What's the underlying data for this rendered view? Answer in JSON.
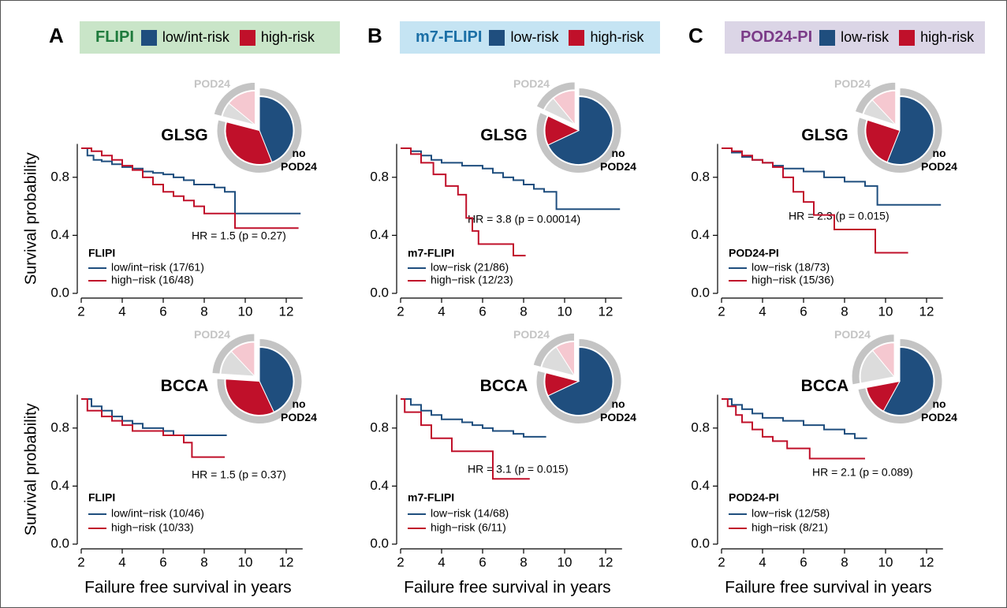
{
  "panels": [
    {
      "letter": "A",
      "score": "FLIPI",
      "legend": [
        {
          "name": "low/int-risk",
          "color": "#1f4e7e"
        },
        {
          "name": "high-risk",
          "color": "#c0102a"
        }
      ]
    },
    {
      "letter": "B",
      "score": "m7-FLIPI",
      "legend": [
        {
          "name": "low-risk",
          "color": "#1f4e7e"
        },
        {
          "name": "high-risk",
          "color": "#c0102a"
        }
      ]
    },
    {
      "letter": "C",
      "score": "POD24-PI",
      "legend": [
        {
          "name": "low-risk",
          "color": "#1f4e7e"
        },
        {
          "name": "high-risk",
          "color": "#c0102a"
        }
      ]
    }
  ],
  "chart_data": [
    {
      "type": "line",
      "step": true,
      "title": "GLSG",
      "y_label": "Survival probability",
      "xlim": [
        2,
        12.8
      ],
      "xticks": [
        2,
        4,
        6,
        8,
        10,
        12
      ],
      "ylim": [
        0,
        1.03
      ],
      "yticks": [
        {
          "value": 0,
          "label": "0.0"
        },
        0.4,
        0.8
      ],
      "annotation": "HR = 1.5 (p = 0.27)",
      "legend_title": "FLIPI",
      "series": [
        {
          "name": "low/int−risk (17/61)",
          "color": "#1f4e7e",
          "x": [
            2,
            2.3,
            2.6,
            3,
            3.5,
            4,
            4.5,
            5,
            5.5,
            6,
            6.5,
            7,
            7.5,
            8.5,
            9,
            9.5,
            12.7
          ],
          "values": [
            1,
            0.95,
            0.92,
            0.91,
            0.89,
            0.87,
            0.86,
            0.84,
            0.83,
            0.82,
            0.8,
            0.78,
            0.75,
            0.73,
            0.7,
            0.55,
            0.55
          ]
        },
        {
          "name": "high−risk (16/48)",
          "color": "#c0102a",
          "x": [
            2,
            2.5,
            3,
            3.5,
            4,
            4.5,
            5,
            5.5,
            6,
            6.5,
            7,
            7.5,
            8,
            9.5,
            12.6
          ],
          "values": [
            1,
            0.98,
            0.95,
            0.92,
            0.88,
            0.85,
            0.8,
            0.75,
            0.7,
            0.67,
            0.64,
            0.6,
            0.55,
            0.45,
            0.45
          ]
        }
      ],
      "inset": {
        "type": "pie",
        "labels": [
          "no POD24",
          "POD24"
        ],
        "values": [
          44,
          35,
          7,
          14
        ],
        "colors": [
          "#1f4e7e",
          "#c0102a",
          "#dcdcdc",
          "#f5c8d0"
        ]
      }
    },
    {
      "type": "line",
      "step": true,
      "title": "BCCA",
      "y_label": "Survival probability",
      "x_label": "Failure free survival in years",
      "xlim": [
        2,
        12.8
      ],
      "xticks": [
        2,
        4,
        6,
        8,
        10,
        12
      ],
      "ylim": [
        0,
        1.03
      ],
      "yticks": [
        {
          "value": 0,
          "label": "0.0"
        },
        0.4,
        0.8
      ],
      "annotation": "HR = 1.5 (p = 0.37)",
      "legend_title": "FLIPI",
      "series": [
        {
          "name": "low/int−risk (10/46)",
          "color": "#1f4e7e",
          "x": [
            2,
            2.5,
            3,
            3.5,
            4,
            4.5,
            5,
            6,
            6.5,
            9.1
          ],
          "values": [
            1,
            0.95,
            0.92,
            0.88,
            0.85,
            0.83,
            0.8,
            0.78,
            0.75,
            0.75
          ]
        },
        {
          "name": "high−risk (10/33)",
          "color": "#c0102a",
          "x": [
            2,
            2.3,
            3,
            3.5,
            4,
            4.5,
            6,
            7,
            7.4,
            9
          ],
          "values": [
            1,
            0.92,
            0.88,
            0.85,
            0.82,
            0.78,
            0.75,
            0.7,
            0.6,
            0.6
          ]
        }
      ],
      "inset": {
        "type": "pie",
        "labels": [
          "no POD24",
          "POD24"
        ],
        "values": [
          43,
          33,
          12,
          12
        ],
        "colors": [
          "#1f4e7e",
          "#c0102a",
          "#dcdcdc",
          "#f5c8d0"
        ]
      }
    },
    {
      "type": "line",
      "step": true,
      "title": "GLSG",
      "xlim": [
        2,
        12.8
      ],
      "xticks": [
        2,
        4,
        6,
        8,
        10,
        12
      ],
      "ylim": [
        0,
        1.03
      ],
      "yticks": [
        {
          "value": 0,
          "label": "0.0"
        },
        0.4,
        0.8
      ],
      "annotation": "HR = 3.8 (p = 0.00014)",
      "legend_title": "m7-FLIPI",
      "series": [
        {
          "name": "low−risk (21/86)",
          "color": "#1f4e7e",
          "x": [
            2,
            2.5,
            3,
            3.5,
            4,
            5,
            6,
            6.5,
            7,
            7.5,
            8,
            8.5,
            9,
            9.6,
            12.7
          ],
          "values": [
            1,
            0.98,
            0.95,
            0.92,
            0.9,
            0.88,
            0.86,
            0.83,
            0.8,
            0.78,
            0.75,
            0.72,
            0.7,
            0.58,
            0.58
          ]
        },
        {
          "name": "high−risk (12/23)",
          "color": "#c0102a",
          "x": [
            2,
            2.5,
            3,
            3.6,
            4.2,
            4.8,
            5.2,
            5.5,
            5.8,
            6.5,
            7.5,
            8.1
          ],
          "values": [
            1,
            0.96,
            0.9,
            0.82,
            0.74,
            0.68,
            0.52,
            0.43,
            0.34,
            0.34,
            0.26,
            0.26
          ]
        }
      ],
      "inset": {
        "type": "pie",
        "labels": [
          "no POD24",
          "POD24"
        ],
        "values": [
          68,
          14,
          7,
          11
        ],
        "colors": [
          "#1f4e7e",
          "#c0102a",
          "#dcdcdc",
          "#f5c8d0"
        ]
      }
    },
    {
      "type": "line",
      "step": true,
      "title": "BCCA",
      "x_label": "Failure free survival in years",
      "xlim": [
        2,
        12.8
      ],
      "xticks": [
        2,
        4,
        6,
        8,
        10,
        12
      ],
      "ylim": [
        0,
        1.03
      ],
      "yticks": [
        {
          "value": 0,
          "label": "0.0"
        },
        0.4,
        0.8
      ],
      "annotation": "HR = 3.1 (p = 0.015)",
      "legend_title": "m7-FLIPI",
      "series": [
        {
          "name": "low−risk (14/68)",
          "color": "#1f4e7e",
          "x": [
            2,
            2.5,
            3,
            3.5,
            4,
            5,
            5.5,
            6,
            6.5,
            7.5,
            8,
            9.1
          ],
          "values": [
            1,
            0.96,
            0.92,
            0.89,
            0.86,
            0.84,
            0.82,
            0.8,
            0.78,
            0.76,
            0.74,
            0.74
          ]
        },
        {
          "name": "high−risk (6/11)",
          "color": "#c0102a",
          "x": [
            2,
            2.2,
            3,
            3.5,
            4.5,
            6.5,
            8.3
          ],
          "values": [
            1,
            0.91,
            0.82,
            0.73,
            0.64,
            0.45,
            0.45
          ]
        }
      ],
      "inset": {
        "type": "pie",
        "labels": [
          "no POD24",
          "POD24"
        ],
        "values": [
          68,
          11,
          12,
          9
        ],
        "colors": [
          "#1f4e7e",
          "#c0102a",
          "#dcdcdc",
          "#f5c8d0"
        ]
      }
    },
    {
      "type": "line",
      "step": true,
      "title": "GLSG",
      "xlim": [
        2,
        12.8
      ],
      "xticks": [
        2,
        4,
        6,
        8,
        10,
        12
      ],
      "ylim": [
        0,
        1.03
      ],
      "yticks": [
        {
          "value": 0,
          "label": "0.0"
        },
        0.4,
        0.8
      ],
      "annotation": "HR = 2.3 (p = 0.015)",
      "legend_title": "POD24-PI",
      "series": [
        {
          "name": "low−risk (18/73)",
          "color": "#1f4e7e",
          "x": [
            2,
            2.5,
            3,
            3.5,
            4,
            4.5,
            5,
            6,
            7,
            8,
            9,
            9.6,
            12.7
          ],
          "values": [
            1,
            0.97,
            0.94,
            0.92,
            0.9,
            0.88,
            0.86,
            0.84,
            0.8,
            0.77,
            0.74,
            0.61,
            0.61
          ]
        },
        {
          "name": "high−risk (15/36)",
          "color": "#c0102a",
          "x": [
            2,
            2.5,
            3,
            3.5,
            4,
            4.5,
            5,
            5.5,
            6,
            6.5,
            7.5,
            9.5,
            11.1
          ],
          "values": [
            1,
            0.98,
            0.95,
            0.92,
            0.9,
            0.87,
            0.8,
            0.7,
            0.63,
            0.54,
            0.44,
            0.28,
            0.28
          ]
        }
      ],
      "inset": {
        "type": "pie",
        "labels": [
          "no POD24",
          "POD24"
        ],
        "values": [
          56,
          24,
          8,
          12
        ],
        "colors": [
          "#1f4e7e",
          "#c0102a",
          "#dcdcdc",
          "#f5c8d0"
        ]
      }
    },
    {
      "type": "line",
      "step": true,
      "title": "BCCA",
      "x_label": "Failure free survival in years",
      "xlim": [
        2,
        12.8
      ],
      "xticks": [
        2,
        4,
        6,
        8,
        10,
        12
      ],
      "ylim": [
        0,
        1.03
      ],
      "yticks": [
        {
          "value": 0,
          "label": "0.0"
        },
        0.4,
        0.8
      ],
      "annotation": "HR = 2.1 (p = 0.089)",
      "legend_title": "POD24-PI",
      "series": [
        {
          "name": "low−risk (12/58)",
          "color": "#1f4e7e",
          "x": [
            2,
            2.5,
            3,
            3.5,
            4,
            5,
            6,
            7,
            8,
            8.5,
            9.1
          ],
          "values": [
            1,
            0.96,
            0.93,
            0.9,
            0.87,
            0.85,
            0.82,
            0.79,
            0.76,
            0.73,
            0.73
          ]
        },
        {
          "name": "high−risk (8/21)",
          "color": "#c0102a",
          "x": [
            2,
            2.3,
            2.7,
            3,
            3.5,
            4,
            4.5,
            5.2,
            6.3,
            9
          ],
          "values": [
            1,
            0.95,
            0.89,
            0.84,
            0.79,
            0.74,
            0.71,
            0.66,
            0.59,
            0.59
          ]
        }
      ],
      "inset": {
        "type": "pie",
        "labels": [
          "no POD24",
          "POD24"
        ],
        "values": [
          58,
          14,
          17,
          11
        ],
        "colors": [
          "#1f4e7e",
          "#c0102a",
          "#dcdcdc",
          "#f5c8d0"
        ]
      }
    }
  ]
}
